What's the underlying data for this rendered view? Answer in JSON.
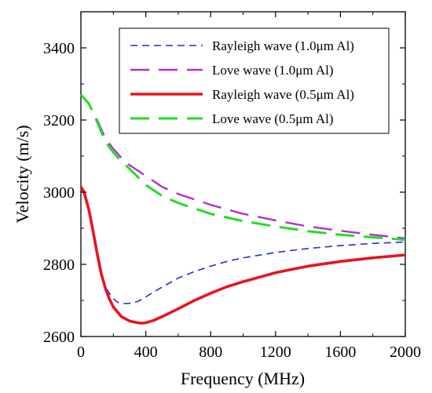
{
  "chart_data": {
    "type": "line",
    "title": "",
    "xlabel": "Frequency (MHz)",
    "ylabel": "Velocity (m/s)",
    "xlim": [
      0,
      2000
    ],
    "ylim": [
      2600,
      3500
    ],
    "x_ticks": [
      0,
      400,
      800,
      1200,
      1600,
      2000
    ],
    "y_ticks": [
      2600,
      2800,
      3000,
      3200,
      3400
    ],
    "grid": false,
    "legend_position": "top-right",
    "series": [
      {
        "name": "Rayleigh wave (1.0μm Al)",
        "color": "#1f2fd8",
        "dash": "short-dash",
        "x": [
          0,
          20,
          50,
          80,
          100,
          125,
          150,
          175,
          200,
          225,
          250,
          300,
          350,
          400,
          500,
          600,
          700,
          800,
          900,
          1000,
          1200,
          1400,
          1600,
          1800,
          2000
        ],
        "y": [
          3015,
          3000,
          2950,
          2870,
          2820,
          2770,
          2740,
          2720,
          2705,
          2695,
          2691,
          2692,
          2697,
          2710,
          2737,
          2762,
          2780,
          2795,
          2808,
          2818,
          2833,
          2844,
          2852,
          2858,
          2862
        ]
      },
      {
        "name": "Love wave (1.0μm Al)",
        "color": "#b030d0",
        "dash": "long-dash",
        "x": [
          0,
          50,
          100,
          150,
          200,
          250,
          300,
          400,
          500,
          600,
          800,
          1000,
          1200,
          1400,
          1600,
          1800,
          2000
        ],
        "y": [
          3270,
          3245,
          3200,
          3150,
          3120,
          3095,
          3075,
          3045,
          3015,
          2995,
          2965,
          2940,
          2922,
          2905,
          2893,
          2882,
          2872
        ]
      },
      {
        "name": "Rayleigh wave (0.5μm Al)",
        "color": "#e8141e",
        "dash": "solid",
        "x": [
          0,
          20,
          50,
          80,
          100,
          125,
          150,
          175,
          200,
          250,
          300,
          350,
          375,
          400,
          450,
          500,
          600,
          700,
          800,
          900,
          1000,
          1200,
          1400,
          1600,
          1800,
          2000
        ],
        "y": [
          3015,
          3000,
          2950,
          2880,
          2830,
          2775,
          2735,
          2705,
          2682,
          2655,
          2643,
          2638,
          2637,
          2638,
          2645,
          2655,
          2677,
          2700,
          2720,
          2738,
          2752,
          2777,
          2795,
          2808,
          2818,
          2826
        ]
      },
      {
        "name": "Love wave (0.5μm Al)",
        "color": "#22dd22",
        "dash": "long-dash",
        "x": [
          0,
          50,
          100,
          150,
          200,
          250,
          300,
          400,
          500,
          600,
          800,
          1000,
          1200,
          1400,
          1600,
          1800,
          2000
        ],
        "y": [
          3270,
          3245,
          3195,
          3140,
          3110,
          3085,
          3065,
          3020,
          2990,
          2970,
          2940,
          2920,
          2905,
          2892,
          2882,
          2875,
          2868
        ]
      }
    ]
  }
}
